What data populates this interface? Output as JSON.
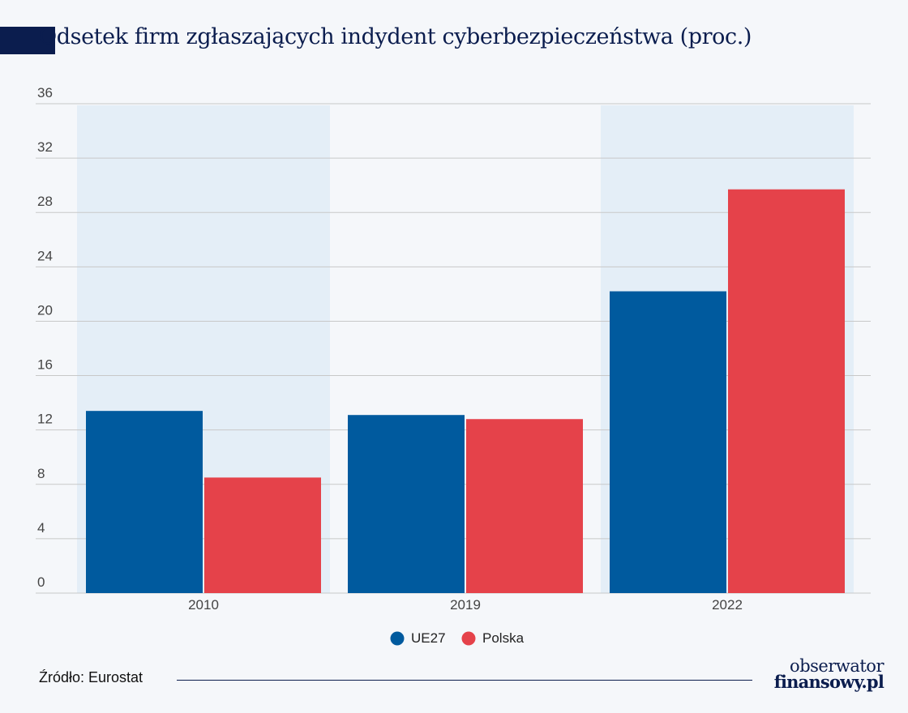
{
  "title": "Odsetek firm zgłaszających indydent cyberbezpieczeństwa (proc.)",
  "source": "Źródło: Eurostat",
  "logo": {
    "line1": "obserwator",
    "line2": "finansowy.pl"
  },
  "colors": {
    "ue27": "#005a9e",
    "polska": "#e5424a",
    "band": "#e4eef7",
    "grid": "#c8c8c8"
  },
  "chart_data": {
    "type": "bar",
    "categories": [
      "2010",
      "2019",
      "2022"
    ],
    "series": [
      {
        "name": "UE27",
        "values": [
          13.4,
          13.1,
          22.2
        ]
      },
      {
        "name": "Polska",
        "values": [
          8.5,
          12.8,
          29.7
        ]
      }
    ],
    "yticks": [
      0,
      4,
      8,
      12,
      16,
      20,
      24,
      28,
      32,
      36
    ],
    "ylim": [
      0,
      36
    ],
    "grid": true,
    "legend": "bottom-center",
    "highlighted_categories": [
      "2010",
      "2022"
    ]
  }
}
